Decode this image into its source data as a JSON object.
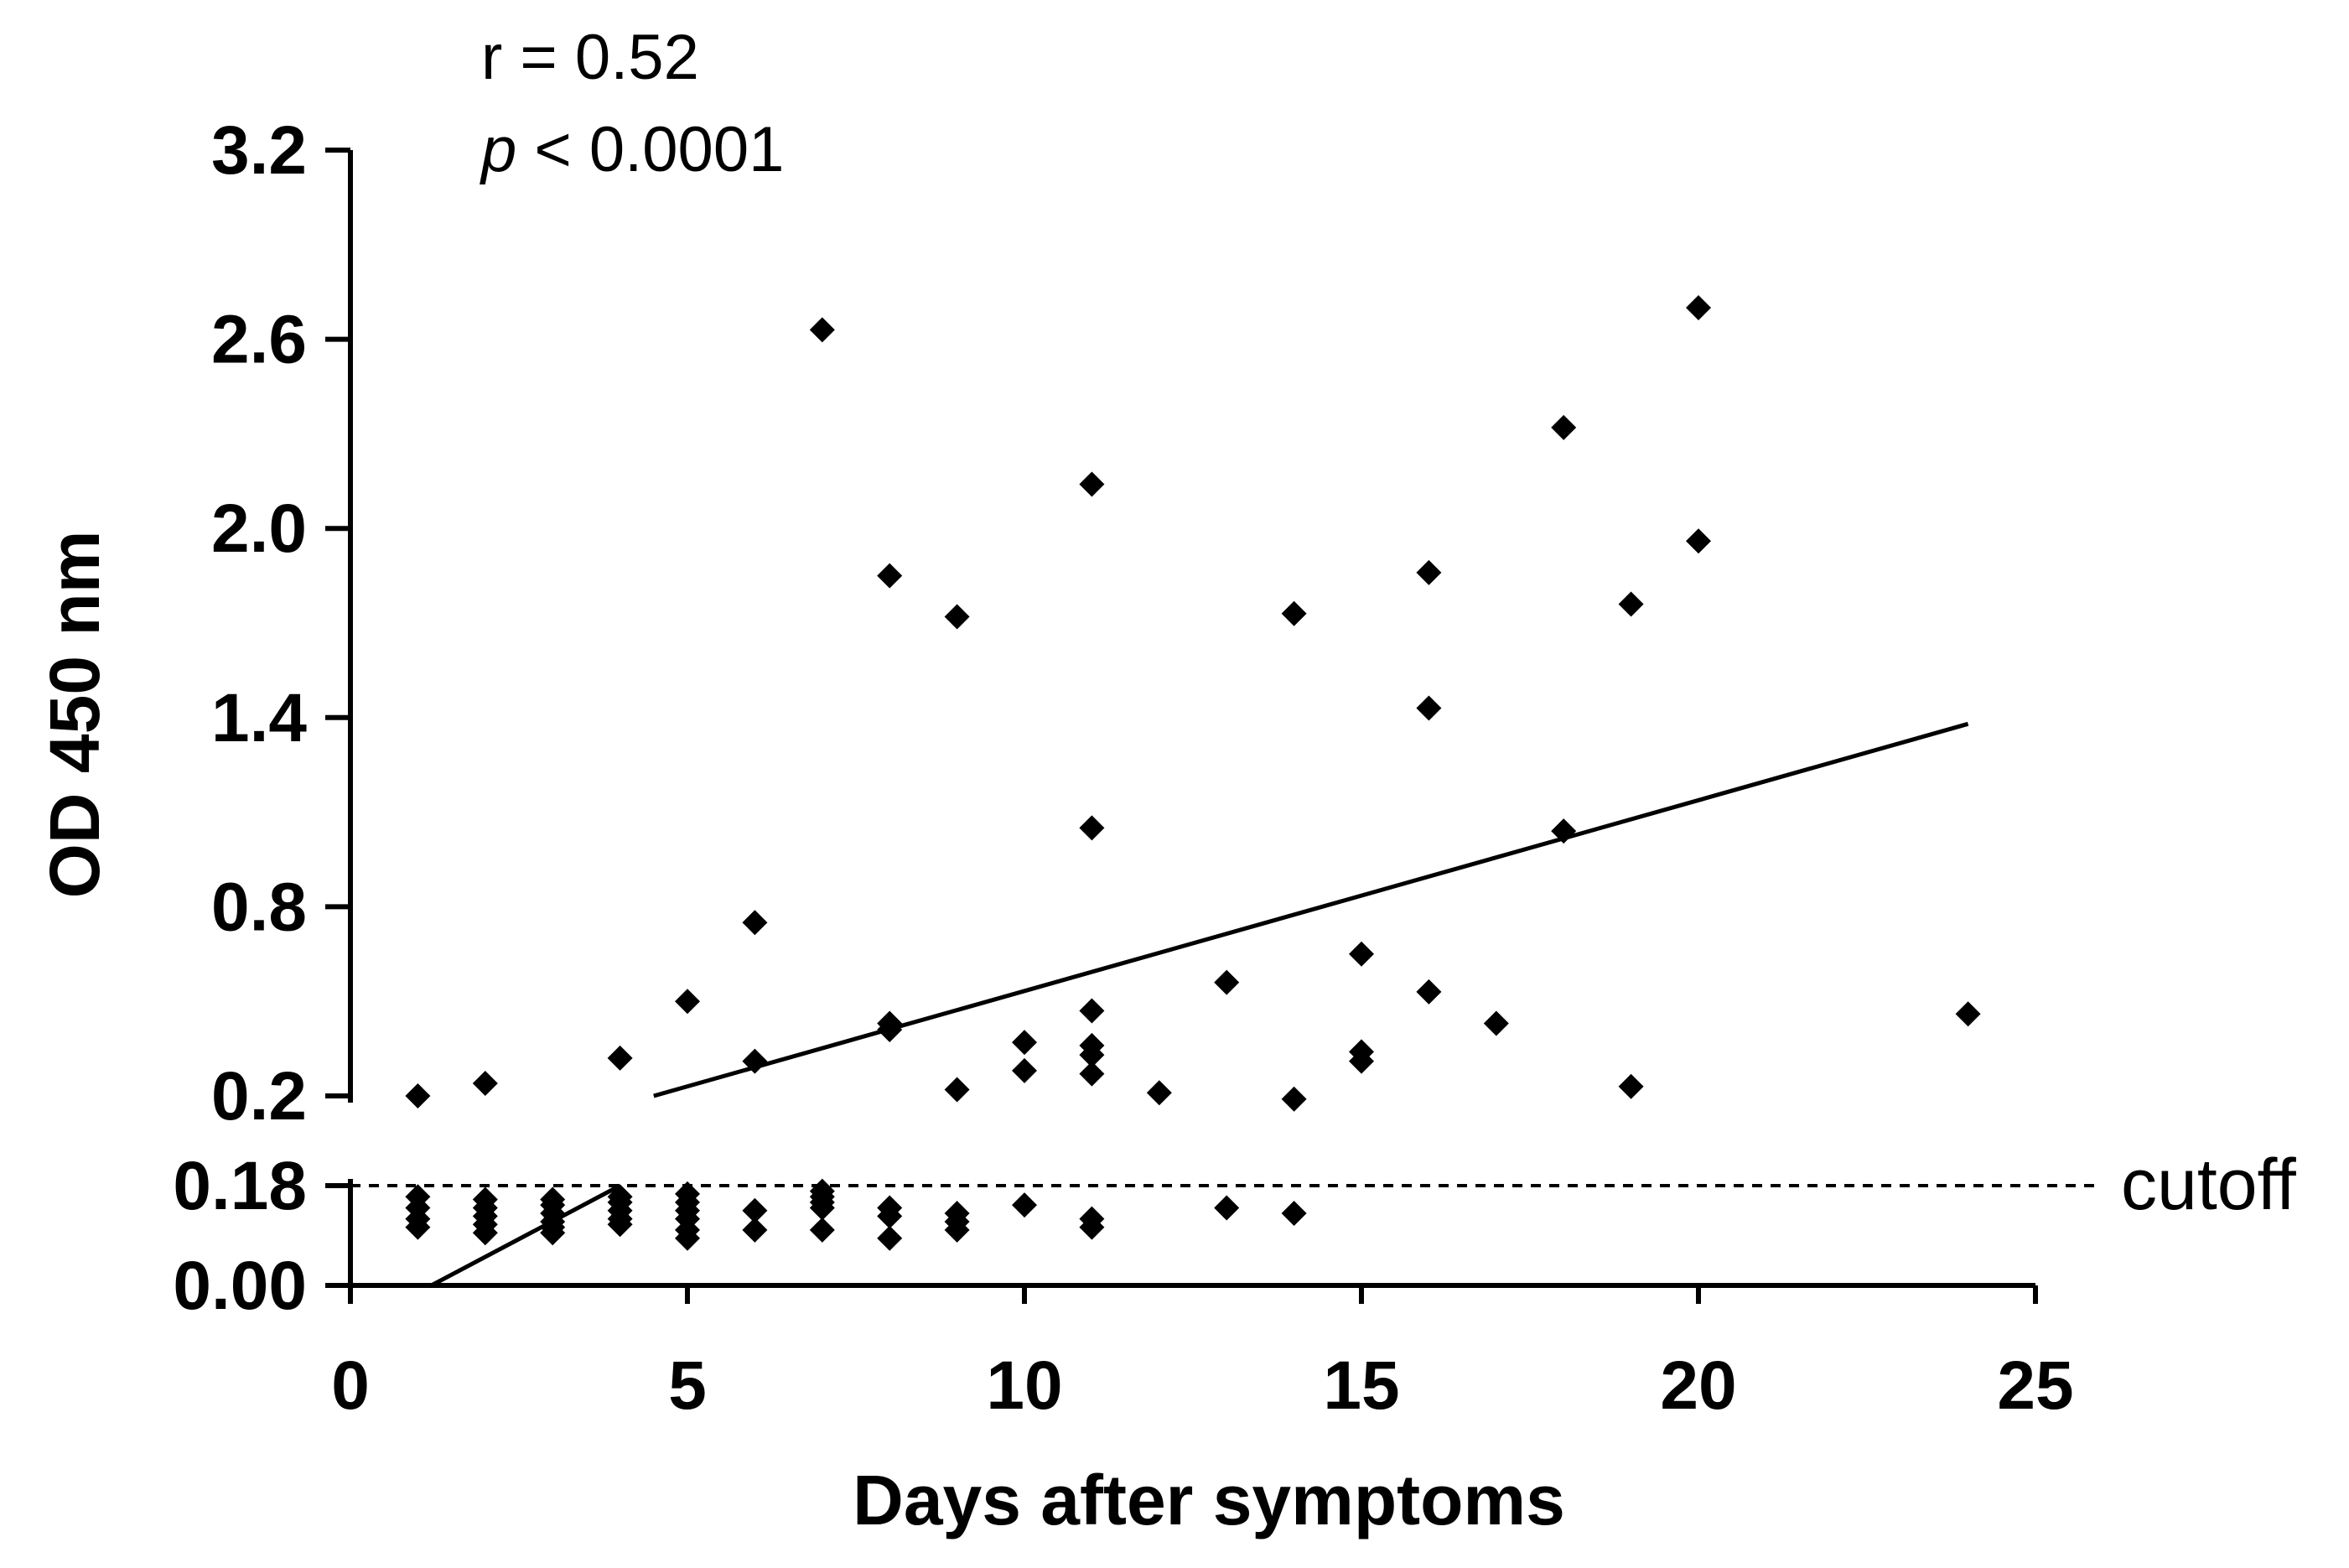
{
  "chart_data": {
    "type": "scatter",
    "title": "",
    "xlabel": "Days after symptoms",
    "ylabel": "OD 450 nm",
    "xlim": [
      0,
      25
    ],
    "x_ticks": [
      "0",
      "5",
      "10",
      "15",
      "20",
      "25"
    ],
    "y_axis_broken": true,
    "y_lower_segment": {
      "range": [
        0.0,
        0.18
      ],
      "ticks": [
        "0.00",
        "0.18"
      ]
    },
    "y_upper_segment": {
      "range": [
        0.2,
        3.2
      ],
      "ticks": [
        "0.2",
        "0.8",
        "1.4",
        "2.0",
        "2.6",
        "3.2"
      ]
    },
    "grid": false,
    "legend": "none",
    "annotations": {
      "r_text": "r = 0.52",
      "p_symbol": "p",
      "p_text": " < 0.0001"
    },
    "cutoff": {
      "value": 0.18,
      "label": "cutoff",
      "style": "dashed"
    },
    "regression_line": {
      "lower_segment": [
        [
          1.2,
          0.0
        ],
        [
          4.0,
          0.18
        ]
      ],
      "upper_segment": [
        [
          4.5,
          0.2
        ],
        [
          24.0,
          1.38
        ]
      ]
    },
    "points": [
      {
        "x": 1,
        "y": 0.2
      },
      {
        "x": 1,
        "y": 0.16
      },
      {
        "x": 1,
        "y": 0.14
      },
      {
        "x": 1,
        "y": 0.12
      },
      {
        "x": 1,
        "y": 0.105
      },
      {
        "x": 2,
        "y": 0.24
      },
      {
        "x": 2,
        "y": 0.155
      },
      {
        "x": 2,
        "y": 0.14
      },
      {
        "x": 2,
        "y": 0.125
      },
      {
        "x": 2,
        "y": 0.11
      },
      {
        "x": 2,
        "y": 0.095
      },
      {
        "x": 3,
        "y": 0.155
      },
      {
        "x": 3,
        "y": 0.145
      },
      {
        "x": 3,
        "y": 0.13
      },
      {
        "x": 3,
        "y": 0.115
      },
      {
        "x": 3,
        "y": 0.105
      },
      {
        "x": 3,
        "y": 0.095
      },
      {
        "x": 4,
        "y": 0.32
      },
      {
        "x": 4,
        "y": 0.16
      },
      {
        "x": 4,
        "y": 0.15
      },
      {
        "x": 4,
        "y": 0.135
      },
      {
        "x": 4,
        "y": 0.12
      },
      {
        "x": 4,
        "y": 0.11
      },
      {
        "x": 5,
        "y": 0.5
      },
      {
        "x": 5,
        "y": 0.165
      },
      {
        "x": 5,
        "y": 0.15
      },
      {
        "x": 5,
        "y": 0.135
      },
      {
        "x": 5,
        "y": 0.12
      },
      {
        "x": 5,
        "y": 0.1
      },
      {
        "x": 5,
        "y": 0.085
      },
      {
        "x": 6,
        "y": 0.75
      },
      {
        "x": 6,
        "y": 0.31
      },
      {
        "x": 6,
        "y": 0.135
      },
      {
        "x": 6,
        "y": 0.1
      },
      {
        "x": 7,
        "y": 2.63
      },
      {
        "x": 7,
        "y": 0.17
      },
      {
        "x": 7,
        "y": 0.16
      },
      {
        "x": 7,
        "y": 0.15
      },
      {
        "x": 7,
        "y": 0.14
      },
      {
        "x": 7,
        "y": 0.1
      },
      {
        "x": 8,
        "y": 1.85
      },
      {
        "x": 8,
        "y": 0.43
      },
      {
        "x": 8,
        "y": 0.41
      },
      {
        "x": 8,
        "y": 0.14
      },
      {
        "x": 8,
        "y": 0.125
      },
      {
        "x": 8,
        "y": 0.085
      },
      {
        "x": 9,
        "y": 1.72
      },
      {
        "x": 9,
        "y": 0.22
      },
      {
        "x": 9,
        "y": 0.13
      },
      {
        "x": 9,
        "y": 0.115
      },
      {
        "x": 9,
        "y": 0.1
      },
      {
        "x": 10,
        "y": 0.37
      },
      {
        "x": 10,
        "y": 0.28
      },
      {
        "x": 10,
        "y": 0.145
      },
      {
        "x": 11,
        "y": 2.14
      },
      {
        "x": 11,
        "y": 1.05
      },
      {
        "x": 11,
        "y": 0.47
      },
      {
        "x": 11,
        "y": 0.36
      },
      {
        "x": 11,
        "y": 0.33
      },
      {
        "x": 11,
        "y": 0.27
      },
      {
        "x": 11,
        "y": 0.12
      },
      {
        "x": 11,
        "y": 0.105
      },
      {
        "x": 12,
        "y": 0.21
      },
      {
        "x": 13,
        "y": 0.56
      },
      {
        "x": 13,
        "y": 0.14
      },
      {
        "x": 14,
        "y": 1.73
      },
      {
        "x": 14,
        "y": 0.19
      },
      {
        "x": 14,
        "y": 0.13
      },
      {
        "x": 15,
        "y": 0.65
      },
      {
        "x": 15,
        "y": 0.34
      },
      {
        "x": 15,
        "y": 0.31
      },
      {
        "x": 16,
        "y": 1.86
      },
      {
        "x": 16,
        "y": 1.43
      },
      {
        "x": 16,
        "y": 0.53
      },
      {
        "x": 17,
        "y": 0.43
      },
      {
        "x": 18,
        "y": 2.32
      },
      {
        "x": 18,
        "y": 1.04
      },
      {
        "x": 19,
        "y": 1.76
      },
      {
        "x": 19,
        "y": 0.23
      },
      {
        "x": 20,
        "y": 2.7
      },
      {
        "x": 20,
        "y": 1.96
      },
      {
        "x": 24,
        "y": 0.46
      }
    ]
  }
}
